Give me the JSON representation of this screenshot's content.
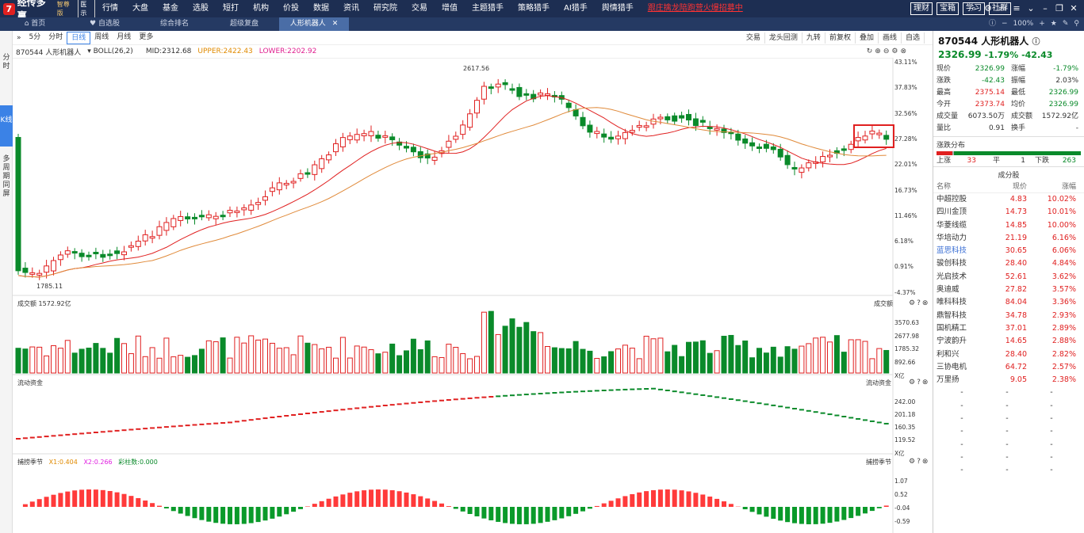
{
  "app": {
    "logo_mark": "ℤ",
    "name": "经传多赢",
    "edition": "智尊版",
    "badge": "医示"
  },
  "menu": [
    "行情",
    "大盘",
    "基金",
    "选股",
    "短打",
    "机构",
    "价投",
    "数据",
    "资讯",
    "研究院",
    "交易",
    "增值",
    "主题猎手",
    "策略猎手",
    "AI猎手",
    "舆情猎手"
  ],
  "promo": "跟庄擒龙陪跑营火爆招募中",
  "top_buttons": [
    "理财",
    "宝箱",
    "学习",
    "社群"
  ],
  "window_icons": [
    "search-icon",
    "gear-icon",
    "window-icon",
    "menu-icon",
    "chevron-down-icon",
    "minimize-icon",
    "restore-icon",
    "close-icon"
  ],
  "tabs": [
    {
      "label": "首页",
      "icon": "home-icon"
    },
    {
      "label": "自选股",
      "icon": "heart-icon"
    },
    {
      "label": "综合排名",
      "icon": ""
    },
    {
      "label": "超级复盘",
      "icon": ""
    },
    {
      "label": "人形机器人",
      "icon": "",
      "active": true,
      "closable": true
    }
  ],
  "tab_right": {
    "zoom": "100%"
  },
  "left_sidebar": [
    "分时",
    "K线",
    "多周期同屏"
  ],
  "toolbar": {
    "periods": [
      "5分",
      "分时",
      "日线",
      "周线",
      "月线",
      "更多"
    ],
    "active_period": "日线",
    "right_tools": [
      "交易",
      "龙头回测",
      "九转",
      "前复权",
      "叠加",
      "画线",
      "自选"
    ]
  },
  "info": {
    "code_name": "870544 人形机器人",
    "indicator": "BOLL(26,2)",
    "mid": "MID:2312.68",
    "upper": "UPPER:2422.43",
    "lower": "LOWER:2202.92"
  },
  "main_axis": [
    "43.11%",
    "37.83%",
    "32.56%",
    "27.28%",
    "22.01%",
    "16.73%",
    "11.46%",
    "6.18%",
    "0.91%",
    "-4.37%"
  ],
  "price_labels": {
    "high": "2617.56",
    "low": "1785.11"
  },
  "volume_panel": {
    "label": "成交额",
    "value": "1572.92亿",
    "axis": [
      "3570.63",
      "2677.98",
      "1785.32",
      "892.66",
      "X亿"
    ]
  },
  "flow_panel": {
    "label": "流动资金",
    "axis": [
      "242.00",
      "201.18",
      "160.35",
      "119.52",
      "X亿"
    ]
  },
  "catch_panel": {
    "label": "捕捞季节",
    "x1": "X1:0.404",
    "x2": "X2:0.266",
    "color_bar": "彩柱数:0.000",
    "axis": [
      "1.07",
      "0.52",
      "-0.04",
      "-0.59"
    ]
  },
  "stock": {
    "code": "870544",
    "name": "人形机器人",
    "price": "2326.99",
    "change_pct": "-1.79%",
    "change": "-42.43",
    "quote": [
      {
        "k": "现价",
        "v": "2326.99",
        "vc": "green",
        "k2": "涨幅",
        "v2": "-1.79%",
        "v2c": "green"
      },
      {
        "k": "涨跌",
        "v": "-42.43",
        "vc": "green",
        "k2": "振幅",
        "v2": "2.03%",
        "v2c": ""
      },
      {
        "k": "最高",
        "v": "2375.14",
        "vc": "red",
        "k2": "最低",
        "v2": "2326.99",
        "v2c": "green"
      },
      {
        "k": "今开",
        "v": "2373.74",
        "vc": "red",
        "k2": "均价",
        "v2": "2326.99",
        "v2c": "green"
      },
      {
        "k": "成交量",
        "v": "6073.50万",
        "vc": "",
        "k2": "成交额",
        "v2": "1572.92亿",
        "v2c": ""
      },
      {
        "k": "量比",
        "v": "0.91",
        "vc": "",
        "k2": "换手",
        "v2": "-",
        "v2c": ""
      }
    ],
    "distribution": {
      "title": "涨跌分布",
      "up_label": "上涨",
      "up": "33",
      "flat_label": "平",
      "flat": "1",
      "down_label": "下跌",
      "down": "263"
    },
    "components_title": "成分股",
    "components_header": [
      "名称",
      "现价",
      "涨幅"
    ],
    "components": [
      {
        "name": "中超控股",
        "price": "4.83",
        "pct": "10.02%",
        "blue": false
      },
      {
        "name": "四川金顶",
        "price": "14.73",
        "pct": "10.01%",
        "blue": false
      },
      {
        "name": "华菱线缆",
        "price": "14.85",
        "pct": "10.00%",
        "blue": false
      },
      {
        "name": "华培动力",
        "price": "21.19",
        "pct": "6.16%",
        "blue": false
      },
      {
        "name": "蓝思科技",
        "price": "30.65",
        "pct": "6.06%",
        "blue": true
      },
      {
        "name": "骏创科技",
        "price": "28.40",
        "pct": "4.84%",
        "blue": false
      },
      {
        "name": "光启技术",
        "price": "52.61",
        "pct": "3.62%",
        "blue": false
      },
      {
        "name": "奥迪威",
        "price": "27.82",
        "pct": "3.57%",
        "blue": false
      },
      {
        "name": "唯科科技",
        "price": "84.04",
        "pct": "3.36%",
        "blue": false
      },
      {
        "name": "鼎智科技",
        "price": "34.78",
        "pct": "2.93%",
        "blue": false
      },
      {
        "name": "国机精工",
        "price": "37.01",
        "pct": "2.89%",
        "blue": false
      },
      {
        "name": "宁波韵升",
        "price": "14.65",
        "pct": "2.88%",
        "blue": false
      },
      {
        "name": "利和兴",
        "price": "28.40",
        "pct": "2.82%",
        "blue": false
      },
      {
        "name": "三协电机",
        "price": "64.72",
        "pct": "2.57%",
        "blue": false
      },
      {
        "name": "万里扬",
        "price": "9.05",
        "pct": "2.38%",
        "blue": false
      }
    ],
    "empty_rows": 7
  }
}
